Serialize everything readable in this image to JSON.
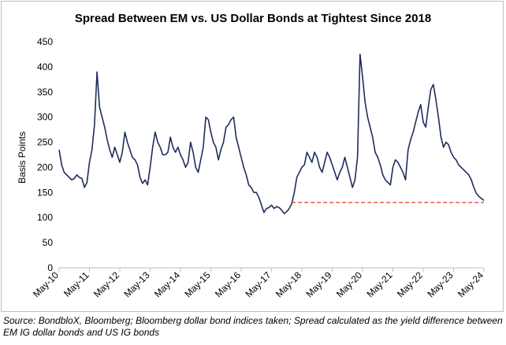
{
  "source_note": "Source: BondbloX, Bloomberg; Bloomberg dollar bond indices taken; Spread calculated as the yield difference between EM IG dollar bonds and US IG bonds",
  "colors": {
    "series": "#1f2d5c",
    "reference_line": "#e03b2a",
    "axis": "#bfbfbf"
  },
  "chart_data": {
    "type": "line",
    "title": "Spread Between EM vs. US Dollar Bonds at Tightest Since 2018",
    "xlabel": "",
    "ylabel": "Basis Points",
    "ylim": [
      0,
      450
    ],
    "yticks": [
      0,
      50,
      100,
      150,
      200,
      250,
      300,
      350,
      400,
      450
    ],
    "xtick_labels": [
      "May-10",
      "May-11",
      "May-12",
      "May-13",
      "May-14",
      "May-15",
      "May-16",
      "May-17",
      "May-18",
      "May-19",
      "May-20",
      "May-21",
      "May-22",
      "May-23",
      "May-24"
    ],
    "grid": false,
    "legend": "none",
    "series": [
      {
        "x": [
          "2010-05",
          "2010-06",
          "2010-07",
          "2010-08",
          "2010-09",
          "2010-10",
          "2010-11",
          "2010-12",
          "2011-01",
          "2011-02",
          "2011-03",
          "2011-04",
          "2011-05",
          "2011-06",
          "2011-07",
          "2011-08",
          "2011-09",
          "2011-10",
          "2011-11",
          "2011-12",
          "2012-01",
          "2012-02",
          "2012-03",
          "2012-04",
          "2012-05",
          "2012-06",
          "2012-07",
          "2012-08",
          "2012-09",
          "2012-10",
          "2012-11",
          "2012-12",
          "2013-01",
          "2013-02",
          "2013-03",
          "2013-04",
          "2013-05",
          "2013-06",
          "2013-07",
          "2013-08",
          "2013-09",
          "2013-10",
          "2013-11",
          "2013-12",
          "2014-01",
          "2014-02",
          "2014-03",
          "2014-04",
          "2014-05",
          "2014-06",
          "2014-07",
          "2014-08",
          "2014-09",
          "2014-10",
          "2014-11",
          "2014-12",
          "2015-01",
          "2015-02",
          "2015-03",
          "2015-04",
          "2015-05",
          "2015-06",
          "2015-07",
          "2015-08",
          "2015-09",
          "2015-10",
          "2015-11",
          "2015-12",
          "2016-01",
          "2016-02",
          "2016-03",
          "2016-04",
          "2016-05",
          "2016-06",
          "2016-07",
          "2016-08",
          "2016-09",
          "2016-10",
          "2016-11",
          "2016-12",
          "2017-01",
          "2017-02",
          "2017-03",
          "2017-04",
          "2017-05",
          "2017-06",
          "2017-07",
          "2017-08",
          "2017-09",
          "2017-10",
          "2017-11",
          "2017-12",
          "2018-01",
          "2018-02",
          "2018-03",
          "2018-04",
          "2018-05",
          "2018-06",
          "2018-07",
          "2018-08",
          "2018-09",
          "2018-10",
          "2018-11",
          "2018-12",
          "2019-01",
          "2019-02",
          "2019-03",
          "2019-04",
          "2019-05",
          "2019-06",
          "2019-07",
          "2019-08",
          "2019-09",
          "2019-10",
          "2019-11",
          "2019-12",
          "2020-01",
          "2020-02",
          "2020-03",
          "2020-04",
          "2020-05",
          "2020-06",
          "2020-07",
          "2020-08",
          "2020-09",
          "2020-10",
          "2020-11",
          "2020-12",
          "2021-01",
          "2021-02",
          "2021-03",
          "2021-04",
          "2021-05",
          "2021-06",
          "2021-07",
          "2021-08",
          "2021-09",
          "2021-10",
          "2021-11",
          "2021-12",
          "2022-01",
          "2022-02",
          "2022-03",
          "2022-04",
          "2022-05",
          "2022-06",
          "2022-07",
          "2022-08",
          "2022-09",
          "2022-10",
          "2022-11",
          "2022-12",
          "2023-01",
          "2023-02",
          "2023-03",
          "2023-04",
          "2023-05",
          "2023-06",
          "2023-07",
          "2023-08",
          "2023-09",
          "2023-10",
          "2023-11",
          "2023-12",
          "2024-01",
          "2024-02",
          "2024-03",
          "2024-04",
          "2024-05"
        ],
        "values": [
          235,
          205,
          190,
          185,
          180,
          175,
          178,
          185,
          180,
          178,
          160,
          170,
          210,
          235,
          285,
          390,
          320,
          300,
          280,
          255,
          235,
          220,
          240,
          225,
          210,
          230,
          270,
          250,
          235,
          220,
          215,
          205,
          180,
          168,
          175,
          165,
          200,
          240,
          270,
          250,
          240,
          225,
          225,
          230,
          260,
          240,
          230,
          240,
          225,
          215,
          200,
          210,
          250,
          230,
          200,
          190,
          215,
          240,
          300,
          295,
          270,
          250,
          240,
          215,
          235,
          250,
          280,
          285,
          295,
          300,
          260,
          240,
          220,
          200,
          185,
          165,
          160,
          150,
          150,
          140,
          125,
          110,
          118,
          120,
          125,
          118,
          122,
          120,
          115,
          108,
          112,
          118,
          128,
          150,
          180,
          190,
          200,
          205,
          230,
          220,
          210,
          230,
          220,
          200,
          190,
          210,
          230,
          220,
          205,
          190,
          175,
          190,
          200,
          220,
          200,
          180,
          160,
          175,
          220,
          425,
          380,
          330,
          300,
          280,
          260,
          230,
          220,
          205,
          185,
          175,
          170,
          165,
          200,
          215,
          210,
          200,
          190,
          175,
          235,
          255,
          270,
          290,
          310,
          325,
          290,
          280,
          320,
          355,
          365,
          335,
          300,
          260,
          240,
          250,
          245,
          230,
          220,
          215,
          205,
          200,
          195,
          190,
          185,
          175,
          160,
          148,
          142,
          138,
          134
        ]
      }
    ],
    "reference_line": {
      "value": 130,
      "from": "2018-01",
      "to": "2024-05",
      "style": "dashed"
    }
  }
}
